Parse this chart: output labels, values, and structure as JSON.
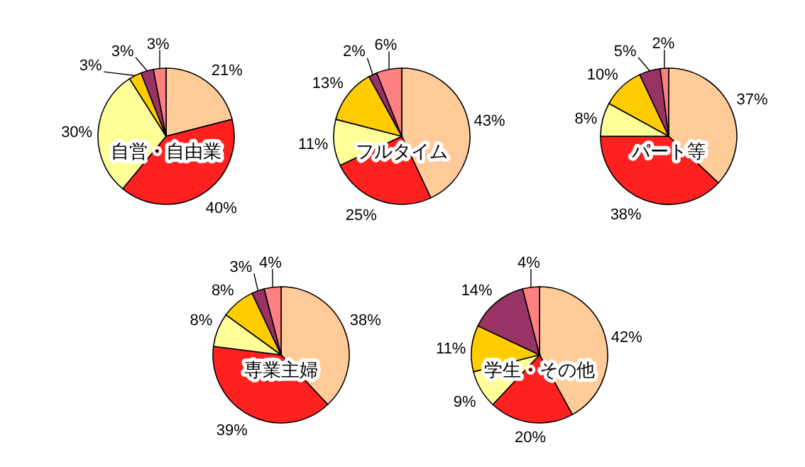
{
  "chart_data": [
    {
      "type": "pie",
      "title": "自営・自由業",
      "categories": [
        null,
        null,
        null,
        null,
        null,
        null
      ],
      "values": [
        21,
        40,
        30,
        3,
        3,
        3
      ],
      "value_labels": [
        "21%",
        "40%",
        "30%",
        "3%",
        "3%",
        "3%"
      ],
      "colors": [
        "#ffcc99",
        "#ff2020",
        "#ffff99",
        "#ffcc00",
        "#993366",
        "#ff8080"
      ]
    },
    {
      "type": "pie",
      "title": "フルタイム",
      "categories": [
        null,
        null,
        null,
        null,
        null,
        null
      ],
      "values": [
        43,
        25,
        11,
        13,
        2,
        6
      ],
      "value_labels": [
        "43%",
        "25%",
        "11%",
        "13%",
        "2%",
        "6%"
      ],
      "colors": [
        "#ffcc99",
        "#ff2020",
        "#ffff99",
        "#ffcc00",
        "#993366",
        "#ff8080"
      ]
    },
    {
      "type": "pie",
      "title": "パート等",
      "categories": [
        null,
        null,
        null,
        null,
        null,
        null
      ],
      "values": [
        37,
        38,
        8,
        10,
        5,
        2
      ],
      "value_labels": [
        "37%",
        "38%",
        "8%",
        "10%",
        "5%",
        "2%"
      ],
      "colors": [
        "#ffcc99",
        "#ff2020",
        "#ffff99",
        "#ffcc00",
        "#993366",
        "#ff8080"
      ]
    },
    {
      "type": "pie",
      "title": "専業主婦",
      "categories": [
        null,
        null,
        null,
        null,
        null,
        null
      ],
      "values": [
        38,
        39,
        8,
        8,
        3,
        4
      ],
      "value_labels": [
        "38%",
        "39%",
        "8%",
        "8%",
        "3%",
        "4%"
      ],
      "colors": [
        "#ffcc99",
        "#ff2020",
        "#ffff99",
        "#ffcc00",
        "#993366",
        "#ff8080"
      ]
    },
    {
      "type": "pie",
      "title": "学生・その他",
      "categories": [
        null,
        null,
        null,
        null,
        null,
        null
      ],
      "values": [
        42,
        20,
        9,
        11,
        14,
        4
      ],
      "value_labels": [
        "42%",
        "20%",
        "9%",
        "11%",
        "14%",
        "4%"
      ],
      "colors": [
        "#ffcc99",
        "#ff2020",
        "#ffff99",
        "#ffcc00",
        "#993366",
        "#ff8080"
      ]
    }
  ]
}
